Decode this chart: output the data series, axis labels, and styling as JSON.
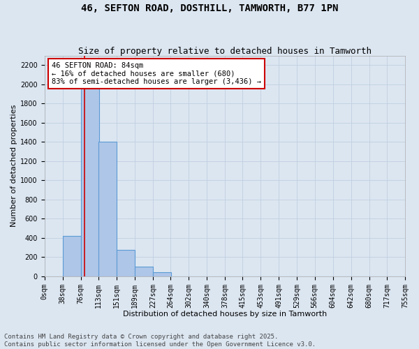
{
  "title_line1": "46, SEFTON ROAD, DOSTHILL, TAMWORTH, B77 1PN",
  "title_line2": "Size of property relative to detached houses in Tamworth",
  "xlabel": "Distribution of detached houses by size in Tamworth",
  "ylabel": "Number of detached properties",
  "bin_labels": [
    "0sqm",
    "38sqm",
    "76sqm",
    "113sqm",
    "151sqm",
    "189sqm",
    "227sqm",
    "264sqm",
    "302sqm",
    "340sqm",
    "378sqm",
    "415sqm",
    "453sqm",
    "491sqm",
    "529sqm",
    "566sqm",
    "604sqm",
    "642sqm",
    "680sqm",
    "717sqm",
    "755sqm"
  ],
  "bin_edges": [
    0,
    38,
    76,
    113,
    151,
    189,
    227,
    264,
    302,
    340,
    378,
    415,
    453,
    491,
    529,
    566,
    604,
    642,
    680,
    717,
    755
  ],
  "bar_heights": [
    0,
    420,
    2050,
    1400,
    275,
    100,
    40,
    0,
    0,
    0,
    0,
    0,
    0,
    0,
    0,
    0,
    0,
    0,
    0,
    0
  ],
  "bar_color": "#aec6e8",
  "bar_edgecolor": "#5b9bd5",
  "bar_linewidth": 0.8,
  "grid_color": "#c0cfe0",
  "background_color": "#dce6f1",
  "ylim": [
    0,
    2300
  ],
  "yticks": [
    0,
    200,
    400,
    600,
    800,
    1000,
    1200,
    1400,
    1600,
    1800,
    2000,
    2200
  ],
  "red_line_x": 84,
  "annotation_text": "46 SEFTON ROAD: 84sqm\n← 16% of detached houses are smaller (680)\n83% of semi-detached houses are larger (3,436) →",
  "annotation_box_color": "#ffffff",
  "annotation_box_edgecolor": "#cc0000",
  "footnote_line1": "Contains HM Land Registry data © Crown copyright and database right 2025.",
  "footnote_line2": "Contains public sector information licensed under the Open Government Licence v3.0.",
  "title_fontsize": 10,
  "subtitle_fontsize": 9,
  "axis_label_fontsize": 8,
  "tick_fontsize": 7,
  "annotation_fontsize": 7.5,
  "footnote_fontsize": 6.5
}
